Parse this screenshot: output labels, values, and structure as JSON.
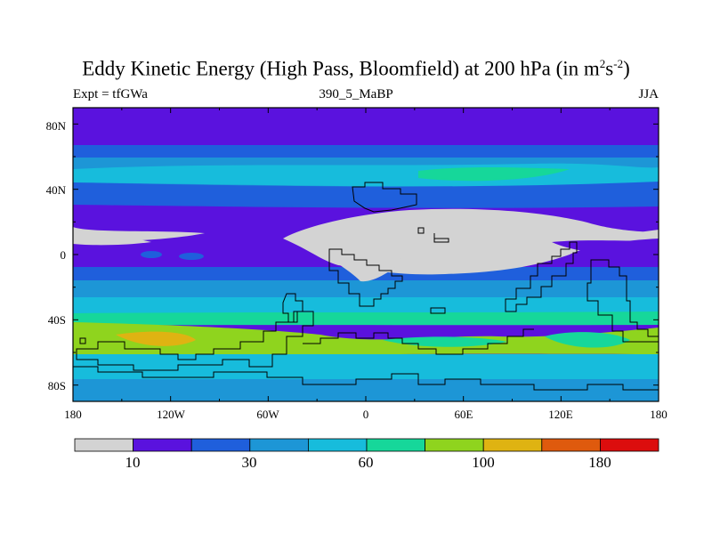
{
  "title_main": "Eddy Kinetic Energy (High Pass, Bloomfield) at 200 hPa (in m",
  "title_sup1": "2",
  "title_mid": "s",
  "title_sup2": "-2",
  "title_end": ")",
  "subtitle_left": "Expt = tfGWa",
  "subtitle_center": "390_5_MaBP",
  "subtitle_right": "JJA",
  "lat_ticks": [
    "80N",
    "40N",
    "0",
    "40S",
    "80S"
  ],
  "lon_ticks": [
    "180",
    "120W",
    "60W",
    "0",
    "60E",
    "120E",
    "180"
  ],
  "colorbar": {
    "colors": [
      "#d3d3d3",
      "#5a12de",
      "#1f5fdc",
      "#1d96d6",
      "#17bcdc",
      "#16d79a",
      "#8fd41e",
      "#dfb312",
      "#df5a0d",
      "#dc0d0d"
    ],
    "labels": [
      "10",
      "30",
      "60",
      "100",
      "180"
    ]
  },
  "contour_levels": [
    10,
    30,
    60,
    100,
    180
  ],
  "units": "m2 s-2",
  "pressure_level": "200 hPa",
  "season": "JJA"
}
